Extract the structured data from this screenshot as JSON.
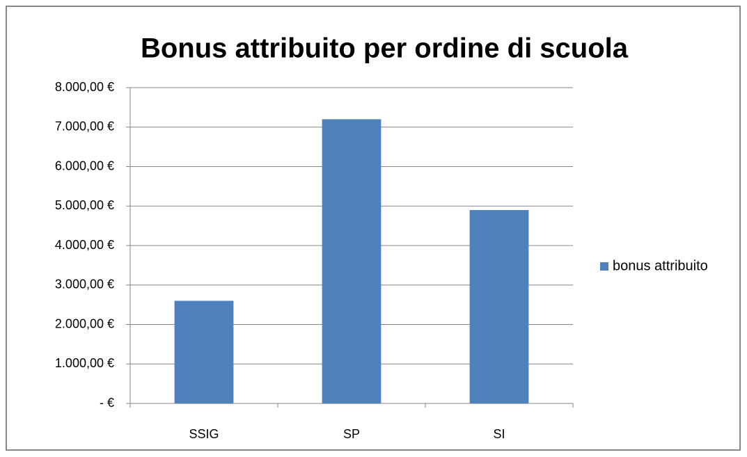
{
  "chart_data": {
    "type": "bar",
    "title": "Bonus attribuito per ordine di scuola",
    "categories": [
      "SSIG",
      "SP",
      "SI"
    ],
    "series": [
      {
        "name": "bonus attribuito",
        "color": "#4f81bd",
        "values": [
          2600,
          7200,
          4900
        ]
      }
    ],
    "ylim": [
      0,
      8000
    ],
    "yticks": [
      {
        "value": 0,
        "label": "-  €"
      },
      {
        "value": 1000,
        "label": "1.000,00 €"
      },
      {
        "value": 2000,
        "label": "2.000,00 €"
      },
      {
        "value": 3000,
        "label": "3.000,00 €"
      },
      {
        "value": 4000,
        "label": "4.000,00 €"
      },
      {
        "value": 5000,
        "label": "5.000,00 €"
      },
      {
        "value": 6000,
        "label": "6.000,00 €"
      },
      {
        "value": 7000,
        "label": "7.000,00 €"
      },
      {
        "value": 8000,
        "label": "8.000,00 €"
      }
    ],
    "grid": true,
    "legend": "right"
  }
}
